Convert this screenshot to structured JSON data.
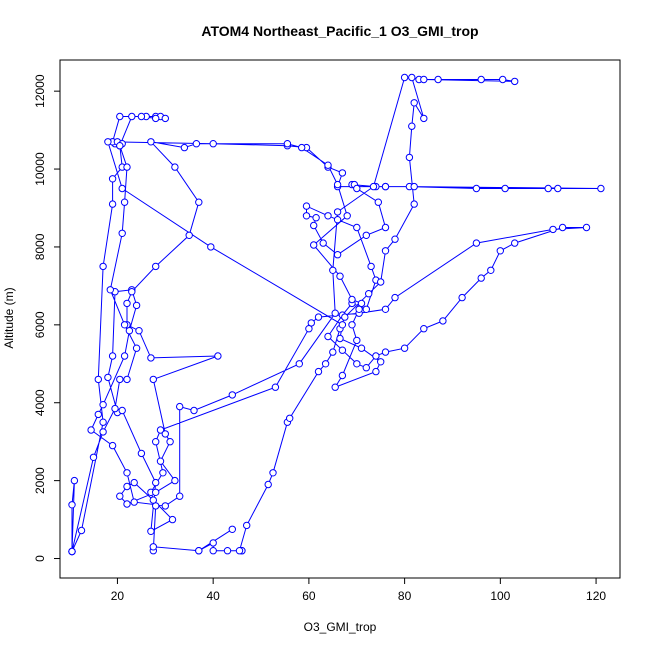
{
  "chart_data": {
    "type": "line",
    "title": "ATOM4 Northeast_Pacific_1 O3_GMI_trop",
    "xlabel": "O3_GMI_trop",
    "ylabel": "Altitude (m)",
    "xlim": [
      8,
      125
    ],
    "ylim": [
      -500,
      12800
    ],
    "xticks": [
      20,
      40,
      60,
      80,
      100,
      120
    ],
    "yticks": [
      0,
      2000,
      4000,
      6000,
      8000,
      10000,
      12000
    ],
    "grid": false,
    "legend": "none",
    "series_color": "#0000ff",
    "marker": "open-circle",
    "points": [
      [
        10.5,
        180
      ],
      [
        11,
        2000
      ],
      [
        10.5,
        1380
      ],
      [
        10.5,
        180
      ],
      [
        12.5,
        720
      ],
      [
        17,
        3500
      ],
      [
        16,
        4600
      ],
      [
        17,
        7500
      ],
      [
        19,
        9100
      ],
      [
        19,
        9750
      ],
      [
        21,
        10050
      ],
      [
        20.5,
        10600
      ],
      [
        23,
        11350
      ],
      [
        26,
        11350
      ],
      [
        28,
        11350
      ],
      [
        29,
        11350
      ],
      [
        30,
        11300
      ],
      [
        28,
        11300
      ],
      [
        25,
        11350
      ],
      [
        20.5,
        11350
      ],
      [
        19,
        10700
      ],
      [
        20,
        10650
      ],
      [
        19.5,
        10650
      ],
      [
        19,
        10700
      ],
      [
        40,
        10650
      ],
      [
        55.5,
        10600
      ],
      [
        59.5,
        10550
      ],
      [
        64,
        10050
      ],
      [
        67,
        9900
      ],
      [
        66,
        9550
      ],
      [
        76,
        9550
      ],
      [
        81,
        9550
      ],
      [
        95,
        9500
      ],
      [
        101,
        9500
      ],
      [
        110,
        9500
      ],
      [
        112,
        9500
      ],
      [
        121,
        9500
      ],
      [
        82,
        9550
      ],
      [
        76,
        9550
      ],
      [
        74,
        9550
      ],
      [
        69,
        9600
      ],
      [
        69.5,
        9600
      ],
      [
        70,
        9500
      ],
      [
        74.5,
        9150
      ],
      [
        76,
        8500
      ],
      [
        72,
        8300
      ],
      [
        66,
        7800
      ],
      [
        63,
        8100
      ],
      [
        61,
        8550
      ],
      [
        61.5,
        8750
      ],
      [
        59.5,
        8800
      ],
      [
        59.5,
        9050
      ],
      [
        64,
        8800
      ],
      [
        66,
        8700
      ],
      [
        70,
        8500
      ],
      [
        73,
        7500
      ],
      [
        74,
        7150
      ],
      [
        72,
        6400
      ],
      [
        69,
        6550
      ],
      [
        67,
        6250
      ],
      [
        64,
        5700
      ],
      [
        67,
        5350
      ],
      [
        70,
        5000
      ],
      [
        72,
        4900
      ],
      [
        74,
        5200
      ],
      [
        76,
        5300
      ],
      [
        80,
        5400
      ],
      [
        84,
        5900
      ],
      [
        88,
        6100
      ],
      [
        92,
        6700
      ],
      [
        96,
        7200
      ],
      [
        98,
        7400
      ],
      [
        100,
        7900
      ],
      [
        103,
        8100
      ],
      [
        113,
        8500
      ],
      [
        118,
        8500
      ],
      [
        111,
        8450
      ],
      [
        95,
        8100
      ],
      [
        78,
        6700
      ],
      [
        76,
        6400
      ],
      [
        70.5,
        6300
      ],
      [
        62,
        6200
      ],
      [
        60.5,
        6050
      ],
      [
        60,
        5900
      ],
      [
        53,
        4400
      ],
      [
        29,
        3300
      ],
      [
        28,
        3000
      ],
      [
        29.5,
        2200
      ],
      [
        27,
        1700
      ],
      [
        28,
        1350
      ],
      [
        27.5,
        200
      ],
      [
        27.5,
        300
      ],
      [
        37,
        200
      ],
      [
        44,
        750
      ],
      [
        37,
        200
      ],
      [
        40,
        400
      ],
      [
        40,
        200
      ],
      [
        43,
        200
      ],
      [
        46,
        200
      ],
      [
        46,
        200
      ],
      [
        45.5,
        200
      ],
      [
        47,
        850
      ],
      [
        51.5,
        1900
      ],
      [
        52.5,
        2200
      ],
      [
        55.5,
        3500
      ],
      [
        56,
        3600
      ],
      [
        62,
        4800
      ],
      [
        63.5,
        5000
      ],
      [
        65,
        5300
      ],
      [
        66.5,
        5900
      ],
      [
        67.5,
        6200
      ],
      [
        72.5,
        6800
      ],
      [
        75,
        7100
      ],
      [
        76,
        7900
      ],
      [
        78,
        8200
      ],
      [
        82,
        9100
      ],
      [
        81,
        10300
      ],
      [
        81.5,
        11100
      ],
      [
        82,
        11700
      ],
      [
        84,
        11300
      ],
      [
        81.5,
        12350
      ],
      [
        83,
        12300
      ],
      [
        87,
        12300
      ],
      [
        96,
        12300
      ],
      [
        100.5,
        12300
      ],
      [
        103,
        12250
      ],
      [
        84,
        12300
      ],
      [
        80,
        12350
      ],
      [
        73.5,
        9550
      ],
      [
        66,
        8900
      ],
      [
        65,
        7400
      ],
      [
        65.5,
        6300
      ],
      [
        58,
        5000
      ],
      [
        44,
        4200
      ],
      [
        36,
        3800
      ],
      [
        33,
        3900
      ],
      [
        33,
        1600
      ],
      [
        30,
        1350
      ],
      [
        23.5,
        1450
      ],
      [
        22,
        2200
      ],
      [
        19,
        2900
      ],
      [
        14.5,
        3300
      ],
      [
        16,
        3700
      ],
      [
        17,
        3950
      ],
      [
        21.5,
        5200
      ],
      [
        22.5,
        5850
      ],
      [
        24,
        6500
      ],
      [
        23,
        6900
      ],
      [
        19.5,
        6850
      ],
      [
        19,
        5200
      ],
      [
        18,
        4650
      ],
      [
        20,
        3750
      ],
      [
        21,
        3800
      ],
      [
        25,
        2700
      ],
      [
        28,
        1950
      ],
      [
        27,
        700
      ],
      [
        31.5,
        1000
      ],
      [
        27.5,
        1500
      ],
      [
        23.5,
        1950
      ],
      [
        22,
        1850
      ],
      [
        20.5,
        1600
      ],
      [
        22,
        1400
      ],
      [
        28,
        1700
      ],
      [
        32,
        2000
      ],
      [
        29,
        2500
      ],
      [
        31,
        3000
      ],
      [
        30,
        3200
      ],
      [
        27.5,
        4600
      ],
      [
        41,
        5200
      ],
      [
        27,
        5150
      ],
      [
        24.5,
        5850
      ],
      [
        22,
        6000
      ],
      [
        22,
        6550
      ],
      [
        23,
        6850
      ],
      [
        28,
        7500
      ],
      [
        35,
        8300
      ],
      [
        37,
        9150
      ],
      [
        32,
        10050
      ],
      [
        27,
        10700
      ],
      [
        34,
        10550
      ],
      [
        36.5,
        10650
      ],
      [
        55.5,
        10650
      ],
      [
        58.5,
        10550
      ],
      [
        64,
        10100
      ],
      [
        66,
        9600
      ],
      [
        68,
        8800
      ],
      [
        61,
        8050
      ],
      [
        66.5,
        7250
      ],
      [
        69,
        6650
      ],
      [
        71,
        6550
      ],
      [
        70.5,
        6400
      ],
      [
        69,
        6000
      ],
      [
        70,
        5600
      ],
      [
        67,
        4700
      ],
      [
        65.5,
        4400
      ],
      [
        74,
        4800
      ],
      [
        75,
        5050
      ],
      [
        71,
        5400
      ],
      [
        66.5,
        5650
      ],
      [
        67,
        6000
      ],
      [
        39.5,
        8000
      ],
      [
        21,
        9500
      ],
      [
        18,
        10700
      ],
      [
        20,
        10700
      ],
      [
        21,
        10650
      ],
      [
        20.5,
        10600
      ],
      [
        22,
        10050
      ],
      [
        21.5,
        9150
      ],
      [
        21,
        8350
      ],
      [
        18.5,
        6900
      ],
      [
        21.5,
        6000
      ],
      [
        24,
        5400
      ],
      [
        22,
        4600
      ],
      [
        20.5,
        4600
      ],
      [
        19.5,
        3850
      ],
      [
        17,
        3250
      ],
      [
        15,
        2600
      ],
      [
        10.5,
        180
      ]
    ]
  }
}
